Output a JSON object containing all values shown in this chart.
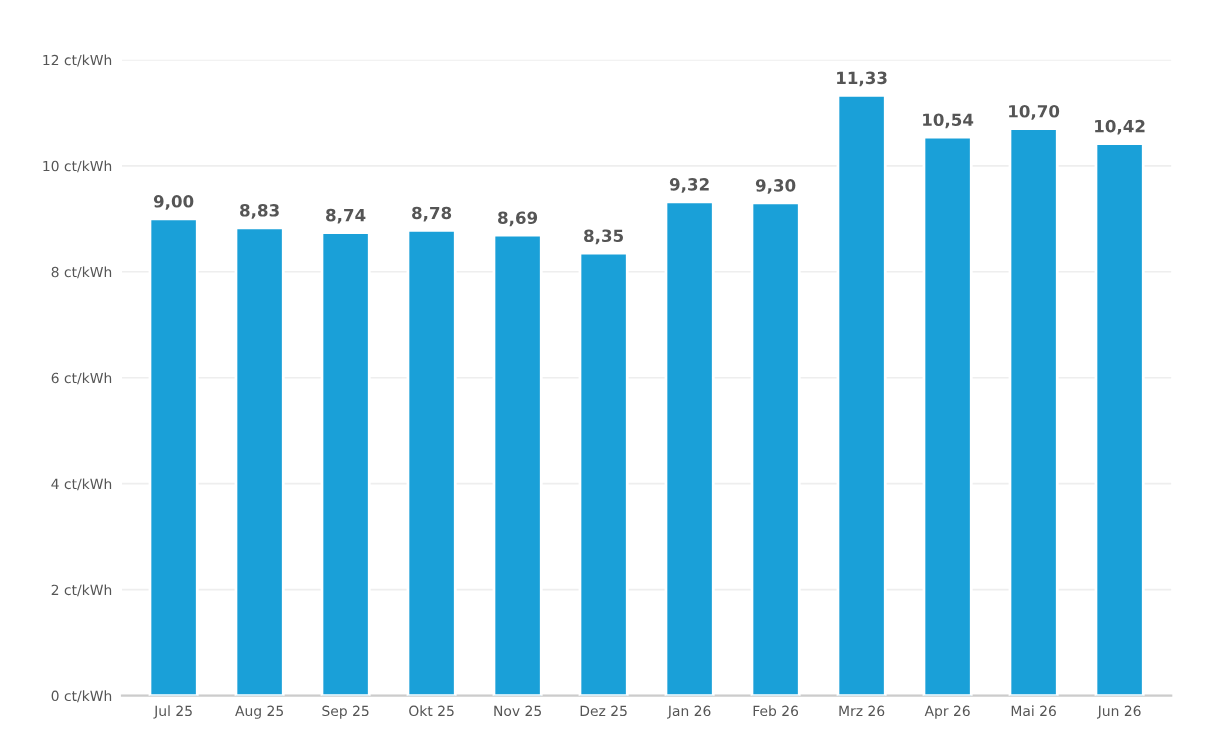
{
  "chart_data": {
    "type": "bar",
    "categories": [
      "Jul 25",
      "Aug 25",
      "Sep 25",
      "Okt 25",
      "Nov 25",
      "Dez 25",
      "Jan 26",
      "Feb 26",
      "Mrz 26",
      "Apr 26",
      "Mai 26",
      "Jun 26"
    ],
    "values": [
      9.0,
      8.83,
      8.74,
      8.78,
      8.69,
      8.35,
      9.32,
      9.3,
      11.33,
      10.54,
      10.7,
      10.42
    ],
    "value_labels": [
      "9,00",
      "8,83",
      "8,74",
      "8,78",
      "8,69",
      "8,35",
      "9,32",
      "9,30",
      "11,33",
      "10,54",
      "10,70",
      "10,42"
    ],
    "color": "#1aa0d8",
    "ylim": [
      0,
      12
    ],
    "yticks": [
      {
        "value": 0,
        "label": "0 ct/kWh"
      },
      {
        "value": 2,
        "label": "2 ct/kWh"
      },
      {
        "value": 4,
        "label": "4 ct/kWh"
      },
      {
        "value": 6,
        "label": "6 ct/kWh"
      },
      {
        "value": 8,
        "label": "8 ct/kWh"
      },
      {
        "value": 10,
        "label": "10 ct/kWh"
      },
      {
        "value": 12,
        "label": "12 ct/kWh"
      }
    ],
    "grid": "y"
  }
}
